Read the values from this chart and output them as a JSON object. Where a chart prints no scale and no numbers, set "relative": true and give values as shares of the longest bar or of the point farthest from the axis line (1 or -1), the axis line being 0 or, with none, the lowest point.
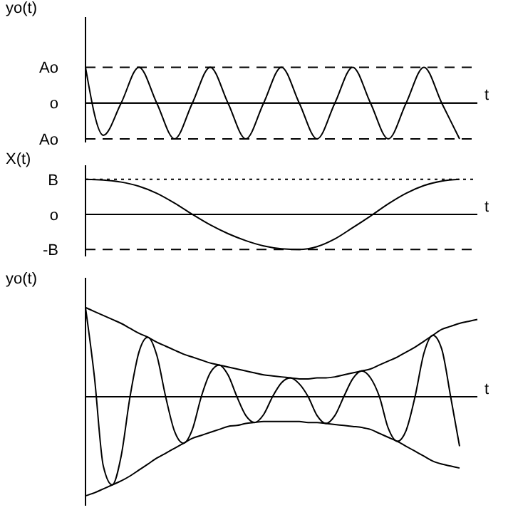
{
  "chart_data": [
    {
      "type": "line",
      "ylabel": "yo(t)",
      "xlabel": "t",
      "tick_labels": "y",
      "marker": "none",
      "line_style": "solid",
      "categories": [
        null,
        null,
        null,
        null,
        null,
        null,
        null,
        null,
        null,
        null,
        null,
        null,
        null,
        null,
        null,
        null,
        null,
        null,
        null,
        null,
        null,
        null,
        null
      ],
      "series": [
        {
          "color": "#000000",
          "values": [
            1,
            -0.9,
            0,
            1,
            0,
            -1,
            0,
            1,
            0,
            -1,
            0,
            1,
            0,
            -1,
            0,
            1,
            0,
            -1,
            0,
            1,
            0,
            -1,
            null
          ]
        }
      ],
      "relative": true,
      "ref_lines": [
        {
          "axis": "y",
          "value": 1,
          "label": "Ao",
          "line_style": "dashed",
          "color": "#000000"
        },
        {
          "axis": "y",
          "value": 0,
          "label": "o",
          "line_style": "solid",
          "color": "#000000"
        },
        {
          "axis": "y",
          "value": -1,
          "label": "Ao",
          "line_style": "dashed",
          "color": "#000000"
        }
      ]
    },
    {
      "type": "line",
      "ylabel": "X(t)",
      "xlabel": "t",
      "tick_labels": "y",
      "marker": "none",
      "line_style": "solid",
      "categories": [
        null,
        null,
        null,
        null,
        null,
        null,
        null,
        null,
        null,
        null,
        null,
        null,
        null,
        null,
        null,
        null,
        null,
        null,
        null,
        null,
        null,
        null,
        null
      ],
      "series": [
        {
          "color": "#000000",
          "values": [
            1,
            0.98,
            0.92,
            0.8,
            0.6,
            0.32,
            0,
            -0.3,
            -0.55,
            -0.75,
            -0.9,
            -0.98,
            -1,
            -0.92,
            -0.7,
            -0.38,
            -0.05,
            0.3,
            0.6,
            0.82,
            0.95,
            1,
            null
          ]
        }
      ],
      "relative": true,
      "ref_lines": [
        {
          "axis": "y",
          "value": 1,
          "label": "B",
          "line_style": "dotted",
          "color": "#000000"
        },
        {
          "axis": "y",
          "value": 0,
          "label": "o",
          "line_style": "solid",
          "color": "#000000"
        },
        {
          "axis": "y",
          "value": -1,
          "label": "-B",
          "line_style": "dashed",
          "color": "#000000"
        }
      ]
    },
    {
      "type": "line",
      "ylabel": "yo(t)",
      "xlabel": "t",
      "tick_labels": false,
      "relative": true,
      "marker": "none",
      "line_style": "solid",
      "categories": [
        null,
        null,
        null,
        null,
        null,
        null,
        null,
        null,
        null,
        null,
        null,
        null,
        null,
        null,
        null,
        null,
        null,
        null,
        null,
        null,
        null,
        null,
        null,
        null,
        null,
        null,
        null,
        null,
        null,
        null,
        null,
        null,
        null,
        null,
        null,
        null,
        null,
        null,
        null,
        null,
        null,
        null,
        null,
        null,
        null
      ],
      "series": [
        {
          "color": "#000000",
          "values": [
            0.9,
            0.2,
            -0.7,
            -0.89,
            -0.6,
            0,
            0.45,
            0.6,
            0.42,
            0,
            -0.35,
            -0.47,
            -0.33,
            0,
            0.24,
            0.32,
            0.22,
            0,
            -0.19,
            -0.26,
            -0.18,
            0,
            0.14,
            0.19,
            0.13,
            0,
            -0.19,
            -0.27,
            -0.19,
            0,
            0.18,
            0.26,
            0.19,
            0,
            -0.32,
            -0.45,
            -0.34,
            0,
            0.44,
            0.62,
            0.48,
            0,
            -0.5,
            null,
            null
          ]
        },
        {
          "color": "#000000",
          "values": [
            0.9,
            0.86,
            0.82,
            0.78,
            0.74,
            0.69,
            0.64,
            0.6,
            0.55,
            0.51,
            0.47,
            0.43,
            0.4,
            0.37,
            0.34,
            0.32,
            0.3,
            0.28,
            0.26,
            0.24,
            0.22,
            0.21,
            0.2,
            0.19,
            0.18,
            0.18,
            0.19,
            0.19,
            0.2,
            0.22,
            0.24,
            0.26,
            0.28,
            0.32,
            0.36,
            0.4,
            0.45,
            0.5,
            0.56,
            0.62,
            0.68,
            0.71,
            0.74,
            0.76,
            0.78
          ]
        },
        {
          "color": "#000000",
          "values": [
            -1,
            -0.97,
            -0.93,
            -0.89,
            -0.85,
            -0.8,
            -0.74,
            -0.68,
            -0.62,
            -0.57,
            -0.52,
            -0.47,
            -0.42,
            -0.39,
            -0.36,
            -0.33,
            -0.3,
            -0.29,
            -0.27,
            -0.26,
            -0.25,
            -0.25,
            -0.25,
            -0.25,
            -0.25,
            -0.26,
            -0.26,
            -0.27,
            -0.28,
            -0.29,
            -0.3,
            -0.31,
            -0.33,
            -0.37,
            -0.41,
            -0.45,
            -0.5,
            -0.55,
            -0.6,
            -0.65,
            -0.68,
            -0.7,
            -0.72,
            null,
            null
          ]
        }
      ]
    }
  ]
}
